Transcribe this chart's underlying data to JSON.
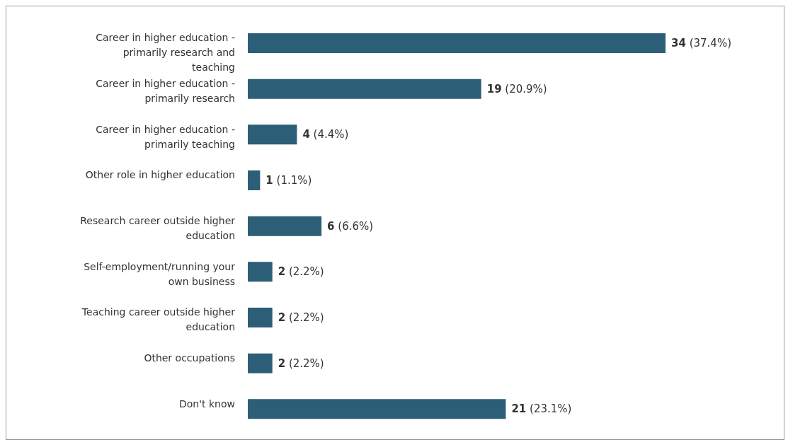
{
  "chart_data": {
    "type": "bar",
    "orientation": "horizontal",
    "categories": [
      "Career in higher education - primarily research and teaching",
      "Career in higher education - primarily research",
      "Career in higher education - primarily teaching",
      "Other role in higher education",
      "Research career outside higher education",
      "Self-employment/running your own business",
      "Teaching career outside higher education",
      "Other occupations",
      "Don't know"
    ],
    "values": [
      34,
      19,
      4,
      1,
      6,
      2,
      2,
      2,
      21
    ],
    "value_labels": [
      "34 (37.4%)",
      "19 (20.9%)",
      "4 (4.4%)",
      "1 (1.1%)",
      "6 (6.6%)",
      "2 (2.2%)",
      "2 (2.2%)",
      "2 (2.2%)",
      "21 (23.1%)"
    ],
    "color": "#2c5f77"
  }
}
